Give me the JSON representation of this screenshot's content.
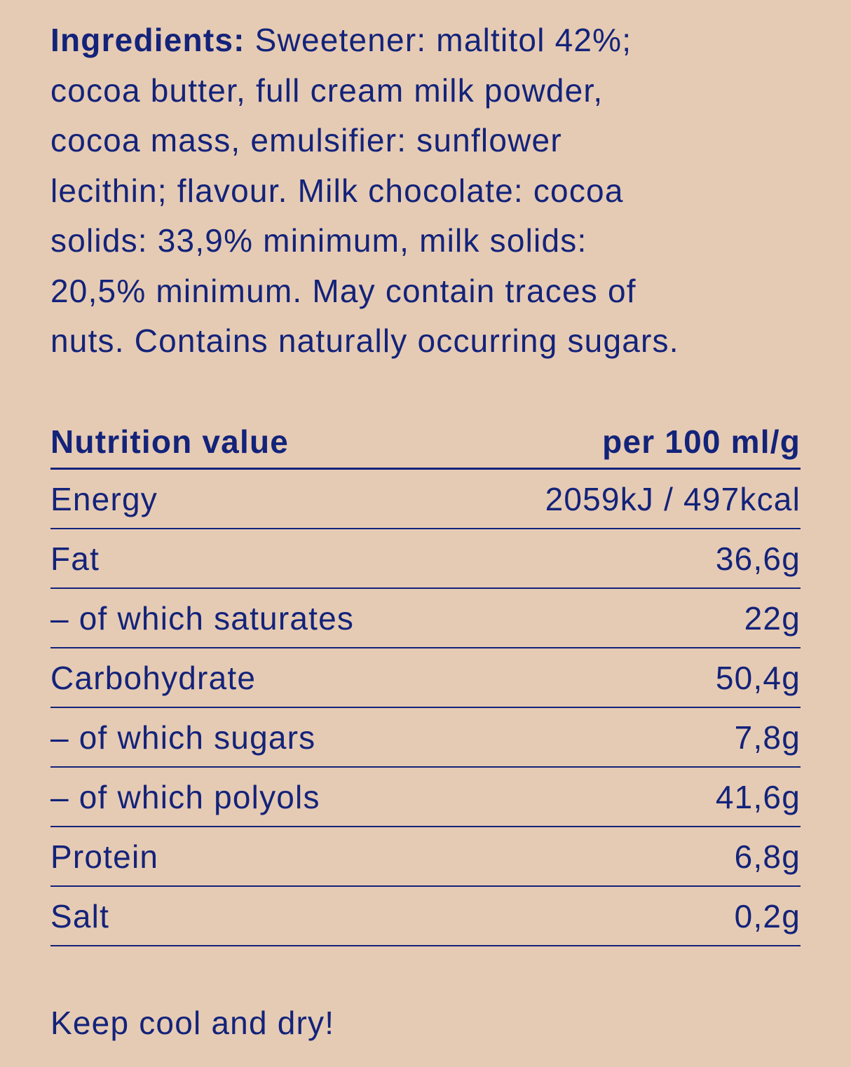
{
  "ingredients": {
    "label": "Ingredients:",
    "lines": [
      " Sweetener: maltitol 42%;",
      "cocoa butter, full cream milk powder,",
      "cocoa mass, emulsifier: sunflower",
      "lecithin; flavour. Milk chocolate: cocoa",
      "solids: 33,9% minimum, milk solids:",
      "20,5% minimum. May contain traces of",
      "nuts. Contains naturally occurring sugars."
    ]
  },
  "nutrition": {
    "header": {
      "label": "Nutrition value",
      "unit": "per 100 ml/g"
    },
    "rows": [
      {
        "name": "Energy",
        "value": "2059kJ / 497kcal"
      },
      {
        "name": "Fat",
        "value": "36,6g"
      },
      {
        "name": "– of which saturates",
        "value": "22g"
      },
      {
        "name": "Carbohydrate",
        "value": "50,4g"
      },
      {
        "name": "– of which sugars",
        "value": "7,8g"
      },
      {
        "name": "– of which polyols",
        "value": "41,6g"
      },
      {
        "name": "Protein",
        "value": "6,8g"
      },
      {
        "name": "Salt",
        "value": "0,2g"
      }
    ]
  },
  "storage": "Keep cool and dry!",
  "colors": {
    "background": "#e6cbb4",
    "text": "#13237a"
  }
}
